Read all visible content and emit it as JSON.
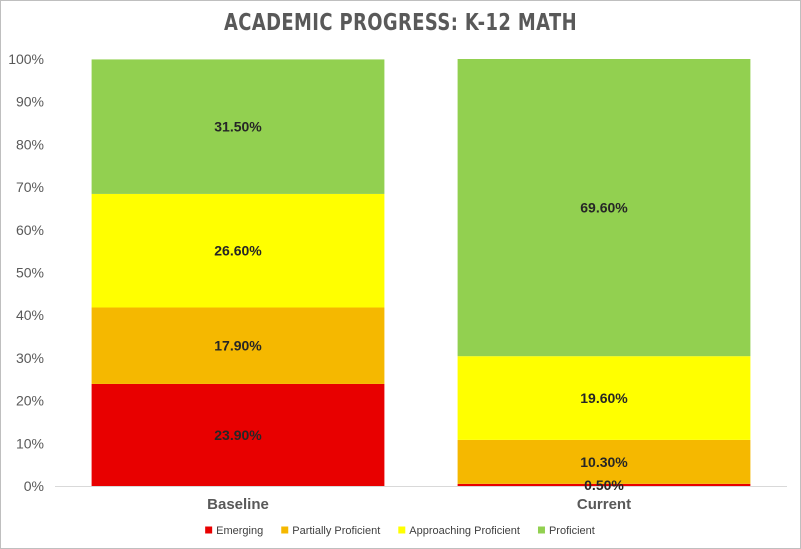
{
  "chart_data": {
    "type": "bar",
    "stacked": true,
    "title": "ACADEMIC PROGRESS: K-12 MATH",
    "categories": [
      "Baseline",
      "Current"
    ],
    "ylim": [
      0,
      100
    ],
    "yticks": [
      "0%",
      "10%",
      "20%",
      "30%",
      "40%",
      "50%",
      "60%",
      "70%",
      "80%",
      "90%",
      "100%"
    ],
    "grid": false,
    "legend_position": "bottom",
    "series": [
      {
        "name": "Emerging",
        "color": "#e80000",
        "values": [
          23.9,
          0.5
        ],
        "labels": [
          "23.90%",
          "0.50%"
        ]
      },
      {
        "name": "Partially Proficient",
        "color": "#f5b800",
        "values": [
          17.9,
          10.3
        ],
        "labels": [
          "17.90%",
          "10.30%"
        ]
      },
      {
        "name": "Approaching Proficient",
        "color": "#ffff00",
        "values": [
          26.6,
          19.6
        ],
        "labels": [
          "26.60%",
          "19.60%"
        ]
      },
      {
        "name": "Proficient",
        "color": "#92d050",
        "values": [
          31.5,
          69.6
        ],
        "labels": [
          "31.50%",
          "69.60%"
        ]
      }
    ]
  }
}
